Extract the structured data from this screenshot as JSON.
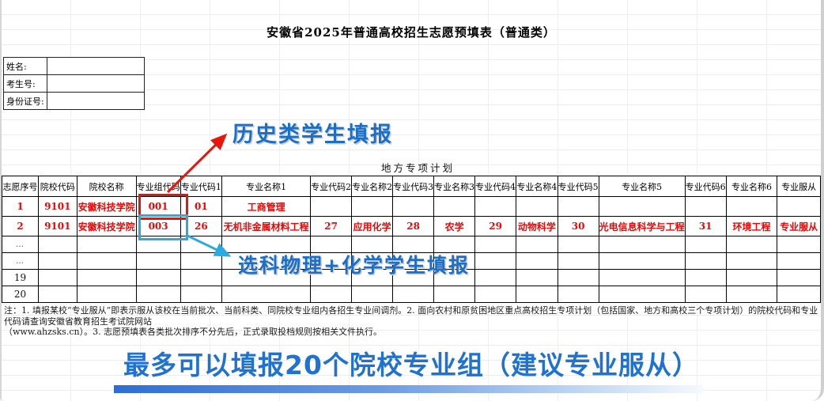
{
  "page": {
    "title": "安徽省2025年普通高校招生志愿预填表（普通类）",
    "section_label": "地方专项计划"
  },
  "student_info": {
    "fields": [
      {
        "label": "姓名:",
        "value": ""
      },
      {
        "label": "考生号:",
        "value": ""
      },
      {
        "label": "身份证号:",
        "value": ""
      }
    ]
  },
  "annotations": {
    "history_note": "历史类学生填报",
    "physics_chem_note": "选科物理+化学学生填报",
    "bottom_headline": "最多可以填报20个院校专业组（建议专业服从）"
  },
  "table": {
    "headers": [
      "志愿序号",
      "院校代码",
      "院校名称",
      "专业组代码",
      "专业代码1",
      "专业名称1",
      "专业代码2",
      "专业名称2",
      "专业代码3",
      "专业名称3",
      "专业代码4",
      "专业名称4",
      "专业代码5",
      "专业名称5",
      "专业代码6",
      "专业名称6",
      "专业服从"
    ],
    "rows": [
      {
        "style": "red",
        "cells": [
          "1",
          "9101",
          "安徽科技学院",
          "001",
          "01",
          "工商管理",
          "",
          "",
          "",
          "",
          "",
          "",
          "",
          "",
          "",
          "",
          ""
        ]
      },
      {
        "style": "red",
        "cells": [
          "2",
          "9101",
          "安徽科技学院",
          "003",
          "26",
          "无机非金属材料工程",
          "27",
          "应用化学",
          "28",
          "农学",
          "29",
          "动物科学",
          "30",
          "光电信息科学与工程",
          "31",
          "环境工程",
          "专业服从"
        ]
      },
      {
        "style": "dots",
        "cells": [
          "…",
          "",
          "",
          "",
          "",
          "",
          "",
          "",
          "",
          "",
          "",
          "",
          "",
          "",
          "",
          "",
          ""
        ]
      },
      {
        "style": "dots",
        "cells": [
          "…",
          "",
          "",
          "",
          "",
          "",
          "",
          "",
          "",
          "",
          "",
          "",
          "",
          "",
          "",
          "",
          ""
        ]
      },
      {
        "style": "plain",
        "cells": [
          "19",
          "",
          "",
          "",
          "",
          "",
          "",
          "",
          "",
          "",
          "",
          "",
          "",
          "",
          "",
          "",
          ""
        ]
      },
      {
        "style": "plain",
        "cells": [
          "20",
          "",
          "",
          "",
          "",
          "",
          "",
          "",
          "",
          "",
          "",
          "",
          "",
          "",
          "",
          "",
          ""
        ]
      }
    ]
  },
  "notes": {
    "line1": "注：1. 填报某校“专业服从”即表示服从该校在当前批次、当前科类、同院校专业组内各招生专业间调剂。2. 面向农村和原贫困地区重点高校招生专项计划（包括国家、地方和高校三个专项计划）的院校代码和专业代码请查询安徽省教育招生考试院网站",
    "line2": "（www.ahzsks.cn）。3. 志愿预填表各类批次排序不分先后，正式录取投档规则按相关文件执行。"
  },
  "colors": {
    "accent_blue": "#1c6fc6",
    "data_red": "#f00404",
    "highlight_red": "#e8150d",
    "highlight_cyan": "#29abe2",
    "bar_gradient_start": "#2e6ed4"
  }
}
